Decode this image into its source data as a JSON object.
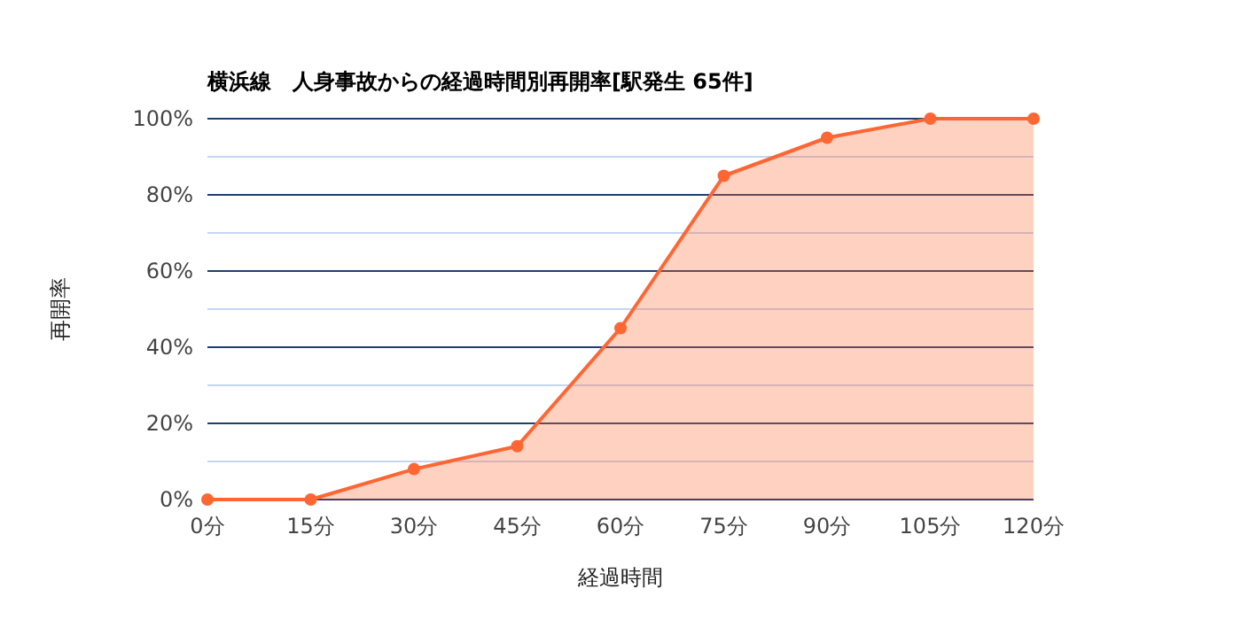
{
  "chart_data": {
    "type": "area",
    "title": "横浜線　人身事故からの経過時間別再開率[駅発生 65件]",
    "xlabel": "経過時間",
    "ylabel": "再開率",
    "categories": [
      "0分",
      "15分",
      "30分",
      "45分",
      "60分",
      "75分",
      "90分",
      "105分",
      "120分"
    ],
    "series": [
      {
        "color": "#ff6633",
        "values": [
          0,
          0,
          8,
          14,
          45,
          85,
          95,
          100,
          100
        ]
      }
    ],
    "ylim": [
      0,
      100
    ],
    "yticks": [
      {
        "value": 0,
        "label": "0%"
      },
      {
        "value": 10,
        "label": null
      },
      {
        "value": 20,
        "label": "20%"
      },
      {
        "value": 30,
        "label": null
      },
      {
        "value": 40,
        "label": "40%"
      },
      {
        "value": 50,
        "label": null
      },
      {
        "value": 60,
        "label": "60%"
      },
      {
        "value": 70,
        "label": null
      },
      {
        "value": 80,
        "label": "80%"
      },
      {
        "value": 90,
        "label": null
      },
      {
        "value": 100,
        "label": "100%"
      }
    ],
    "grid": "y",
    "marker": "circle"
  }
}
